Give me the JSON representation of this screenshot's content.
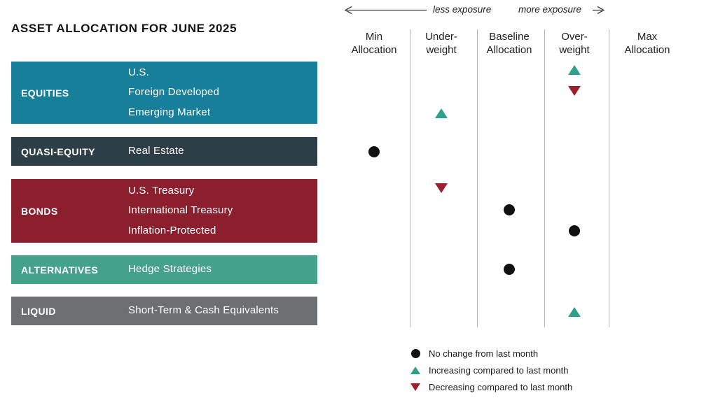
{
  "title": "ASSET ALLOCATION FOR JUNE 2025",
  "exposure": {
    "less_label": "less exposure",
    "more_label": "more exposure"
  },
  "columns": [
    {
      "label": "Min\nAllocation"
    },
    {
      "label": "Under-\nweight"
    },
    {
      "label": "Baseline\nAllocation"
    },
    {
      "label": "Over-\nweight"
    },
    {
      "label": "Max\nAllocation"
    }
  ],
  "categories": [
    {
      "name": "EQUITIES",
      "color": "#187f9a",
      "items": [
        "U.S.",
        "Foreign Developed",
        "Emerging Market"
      ]
    },
    {
      "name": "QUASI-EQUITY",
      "color": "#2d3e46",
      "items": [
        "Real Estate"
      ]
    },
    {
      "name": "BONDS",
      "color": "#8c1f2d",
      "items": [
        "U.S. Treasury",
        "International Treasury",
        "Inflation-Protected"
      ]
    },
    {
      "name": "ALTERNATIVES",
      "color": "#44a28b",
      "items": [
        "Hedge Strategies"
      ]
    },
    {
      "name": "LIQUID",
      "color": "#6b6f72",
      "items": [
        "Short-Term & Cash Equivalents"
      ]
    }
  ],
  "legend": [
    {
      "change": "no change",
      "label": "No change from last month"
    },
    {
      "change": "increasing",
      "label": "Increasing compared to last month"
    },
    {
      "change": "decreasing",
      "label": "Decreasing compared to last month"
    }
  ],
  "colors": {
    "no_change": "#111111",
    "increase": "#2da189",
    "decrease": "#9b1f2d"
  },
  "chart_data": {
    "type": "table",
    "title": "ASSET ALLOCATION FOR JUNE 2025",
    "columns": [
      "Min Allocation",
      "Under-weight",
      "Baseline Allocation",
      "Over-weight",
      "Max Allocation"
    ],
    "axis_note": "columns ordered from less exposure (left) to more exposure (right)",
    "rows": [
      {
        "category": "EQUITIES",
        "item": "U.S.",
        "position": "Over-weight",
        "change": "increasing"
      },
      {
        "category": "EQUITIES",
        "item": "Foreign Developed",
        "position": "Over-weight",
        "change": "decreasing"
      },
      {
        "category": "EQUITIES",
        "item": "Emerging Market",
        "position": "Under-weight",
        "change": "increasing"
      },
      {
        "category": "QUASI-EQUITY",
        "item": "Real Estate",
        "position": "Min Allocation",
        "change": "no change"
      },
      {
        "category": "BONDS",
        "item": "U.S. Treasury",
        "position": "Under-weight",
        "change": "decreasing"
      },
      {
        "category": "BONDS",
        "item": "International Treasury",
        "position": "Baseline Allocation",
        "change": "no change"
      },
      {
        "category": "BONDS",
        "item": "Inflation-Protected",
        "position": "Over-weight",
        "change": "no change"
      },
      {
        "category": "ALTERNATIVES",
        "item": "Hedge Strategies",
        "position": "Baseline Allocation",
        "change": "no change"
      },
      {
        "category": "LIQUID",
        "item": "Short-Term & Cash Equivalents",
        "position": "Over-weight",
        "change": "increasing"
      }
    ],
    "legend": [
      "No change from last month",
      "Increasing compared to last month",
      "Decreasing compared to last month"
    ]
  }
}
